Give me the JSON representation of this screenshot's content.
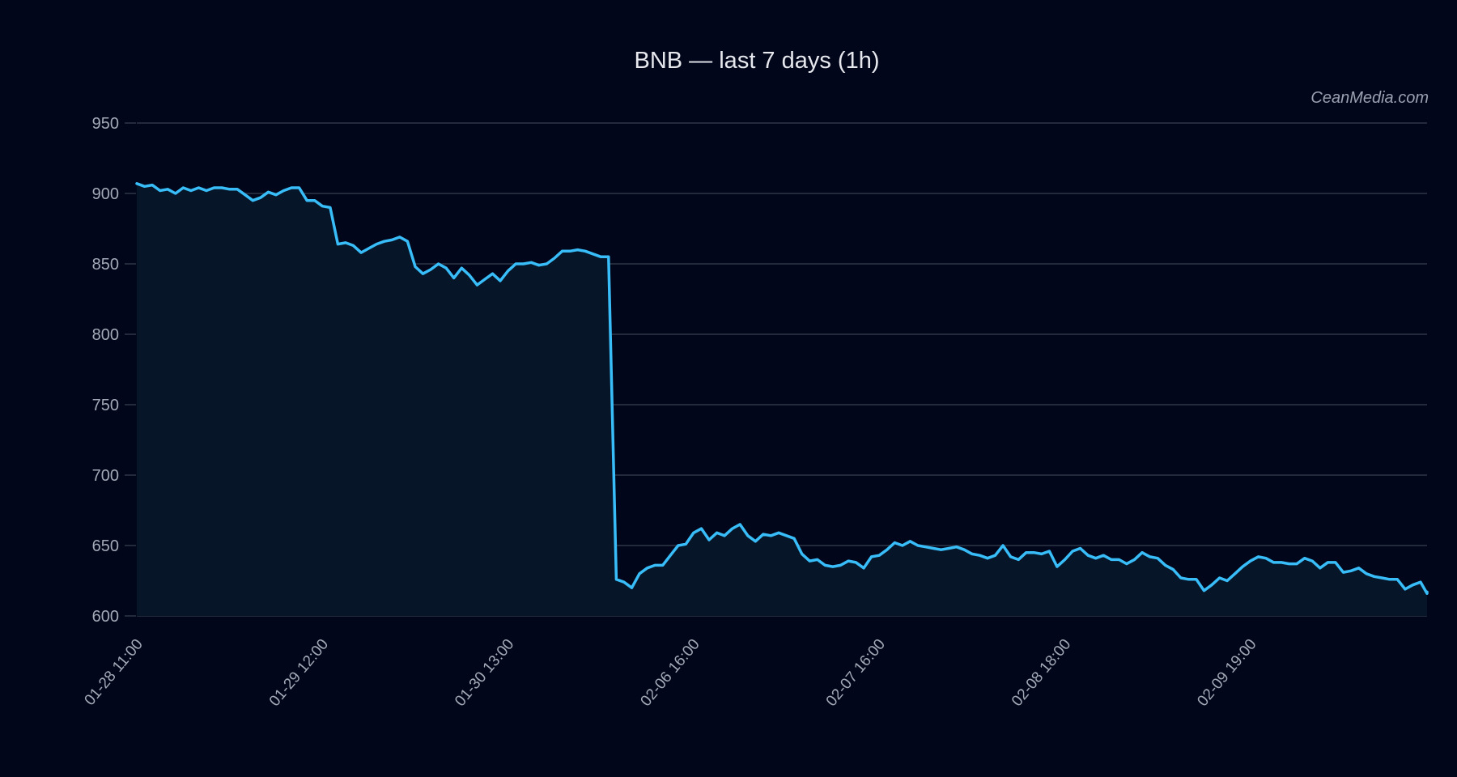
{
  "chart_data": {
    "type": "area",
    "title": "BNB — last 7 days (1h)",
    "watermark": "CeanMedia.com",
    "xlabel": "",
    "ylabel": "",
    "ylim": [
      600,
      950
    ],
    "yticks": [
      600,
      650,
      700,
      750,
      800,
      850,
      900,
      950
    ],
    "xticks": [
      {
        "index": 0,
        "label": "01-28 11:00"
      },
      {
        "index": 24,
        "label": "01-29 12:00"
      },
      {
        "index": 48,
        "label": "01-30 13:00"
      },
      {
        "index": 72,
        "label": "02-06 16:00"
      },
      {
        "index": 96,
        "label": "02-07 16:00"
      },
      {
        "index": 120,
        "label": "02-08 18:00"
      },
      {
        "index": 144,
        "label": "02-09 19:00"
      }
    ],
    "grid": true,
    "legend": null,
    "colors": {
      "line": "#38bdf8",
      "fill": "#071528",
      "background": "#02061a",
      "grid": "#2c3646"
    },
    "series": [
      {
        "name": "BNB",
        "values": [
          907,
          905,
          906,
          902,
          903,
          900,
          904,
          902,
          904,
          902,
          904,
          904,
          903,
          903,
          899,
          895,
          897,
          901,
          899,
          902,
          904,
          904,
          895,
          895,
          891,
          890,
          864,
          865,
          863,
          858,
          861,
          864,
          866,
          867,
          869,
          866,
          848,
          843,
          846,
          850,
          847,
          840,
          847,
          842,
          835,
          839,
          843,
          838,
          845,
          850,
          850,
          851,
          849,
          850,
          854,
          859,
          859,
          860,
          859,
          857,
          855,
          855,
          626,
          624,
          620,
          630,
          634,
          636,
          636,
          643,
          650,
          651,
          659,
          662,
          654,
          659,
          657,
          662,
          665,
          657,
          653,
          658,
          657,
          659,
          657,
          655,
          644,
          639,
          640,
          636,
          635,
          636,
          639,
          638,
          634,
          642,
          643,
          647,
          652,
          650,
          653,
          650,
          649,
          648,
          647,
          648,
          649,
          647,
          644,
          643,
          641,
          643,
          650,
          642,
          640,
          645,
          645,
          644,
          646,
          635,
          640,
          646,
          648,
          643,
          641,
          643,
          640,
          640,
          637,
          640,
          645,
          642,
          641,
          636,
          633,
          627,
          626,
          626,
          618,
          622,
          627,
          625,
          630,
          635,
          639,
          642,
          641,
          638,
          638,
          637,
          637,
          641,
          639,
          634,
          638,
          638,
          631,
          632,
          634,
          630,
          628,
          627,
          626,
          626,
          619,
          622,
          624,
          616,
          617
        ]
      }
    ]
  }
}
